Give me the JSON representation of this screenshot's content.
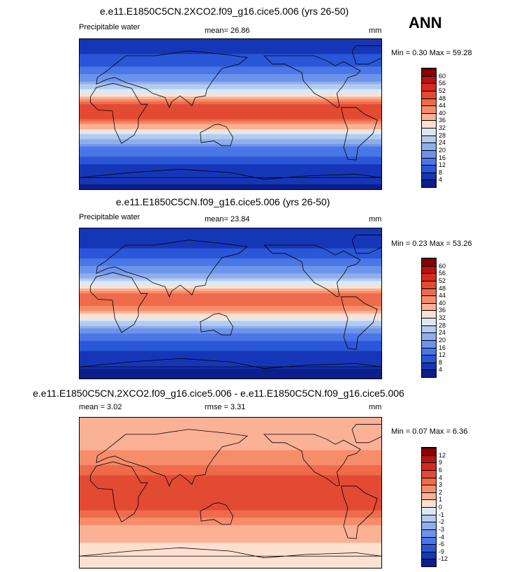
{
  "season": "ANN",
  "panels": [
    {
      "title": "e.e11.E1850C5CN.2XCO2.f09_g16.cice5.006 (yrs 26-50)",
      "left_label": "Precipitable water",
      "mid_label": "mean=  26.86",
      "units": "mm",
      "minmax": "Min =   0.30 Max =  59.28",
      "field": "precipitable_water_2xco2",
      "colorbar_labels": [
        "60",
        "56",
        "52",
        "48",
        "44",
        "40",
        "36",
        "32",
        "28",
        "24",
        "20",
        "16",
        "12",
        "8",
        "4"
      ],
      "colors": [
        "#8b0000",
        "#b5140f",
        "#d52b1e",
        "#e34a33",
        "#ee6b4b",
        "#f58d6b",
        "#fab195",
        "#fde0d0",
        "#dbe9f6",
        "#b3cbef",
        "#8faeed",
        "#6d93ea",
        "#4a76e6",
        "#2a56d8",
        "#1636b8",
        "#0c1f8a"
      ]
    },
    {
      "title": "e.e11.E1850C5CN.f09_g16.cice5.006 (yrs 26-50)",
      "left_label": "Precipitable water",
      "mid_label": "mean=  23.84",
      "units": "mm",
      "minmax": "Min =   0.23 Max =  53.26",
      "field": "precipitable_water_ctrl",
      "colorbar_labels": [
        "60",
        "56",
        "52",
        "48",
        "44",
        "40",
        "36",
        "32",
        "28",
        "24",
        "20",
        "16",
        "12",
        "8",
        "4"
      ],
      "colors": [
        "#8b0000",
        "#b5140f",
        "#d52b1e",
        "#e34a33",
        "#ee6b4b",
        "#f58d6b",
        "#fab195",
        "#fde0d0",
        "#dbe9f6",
        "#b3cbef",
        "#8faeed",
        "#6d93ea",
        "#4a76e6",
        "#2a56d8",
        "#1636b8",
        "#0c1f8a"
      ]
    },
    {
      "title": "e.e11.E1850C5CN.2XCO2.f09_g16.cice5.006 - e.e11.E1850C5CN.f09_g16.cice5.006",
      "left_label": "mean =   3.02",
      "mid_label": "rmse =   3.31",
      "units": "mm",
      "minmax": "Min =   0.07 Max =   6.36",
      "field": "precipitable_water_difference",
      "colorbar_labels": [
        "12",
        "9",
        "6",
        "4",
        "3",
        "2",
        "1",
        "0",
        "-1",
        "-2",
        "-3",
        "-4",
        "-6",
        "-9",
        "-12"
      ],
      "colors": [
        "#8b0000",
        "#b5140f",
        "#d52b1e",
        "#e34a33",
        "#ee6b4b",
        "#f58d6b",
        "#fab195",
        "#fde0d0",
        "#dbe9f6",
        "#b3cbef",
        "#8faeed",
        "#6d93ea",
        "#4a76e6",
        "#2a56d8",
        "#1636b8",
        "#0c1f8a"
      ]
    }
  ],
  "chart_data": [
    {
      "type": "heatmap",
      "title": "e.e11.E1850C5CN.2XCO2.f09_g16.cice5.006 (yrs 26-50)",
      "variable": "Precipitable water",
      "units": "mm",
      "mean": 26.86,
      "min": 0.3,
      "max": 59.28,
      "contour_levels": [
        4,
        8,
        12,
        16,
        20,
        24,
        28,
        32,
        36,
        40,
        44,
        48,
        52,
        56,
        60
      ],
      "zonal_mean_profile": {
        "lat": [
          -90,
          -60,
          -40,
          -20,
          -10,
          0,
          10,
          20,
          40,
          60,
          90
        ],
        "value": [
          3,
          8,
          16,
          32,
          44,
          52,
          50,
          36,
          20,
          10,
          5
        ]
      }
    },
    {
      "type": "heatmap",
      "title": "e.e11.E1850C5CN.f09_g16.cice5.006 (yrs 26-50)",
      "variable": "Precipitable water",
      "units": "mm",
      "mean": 23.84,
      "min": 0.23,
      "max": 53.26,
      "contour_levels": [
        4,
        8,
        12,
        16,
        20,
        24,
        28,
        32,
        36,
        40,
        44,
        48,
        52,
        56,
        60
      ],
      "zonal_mean_profile": {
        "lat": [
          -90,
          -60,
          -40,
          -20,
          -10,
          0,
          10,
          20,
          40,
          60,
          90
        ],
        "value": [
          2,
          7,
          14,
          28,
          40,
          46,
          45,
          32,
          18,
          9,
          4
        ]
      }
    },
    {
      "type": "heatmap",
      "title": "e.e11.E1850C5CN.2XCO2.f09_g16.cice5.006 - e.e11.E1850C5CN.f09_g16.cice5.006",
      "variable": "Precipitable water difference",
      "units": "mm",
      "mean": 3.02,
      "rmse": 3.31,
      "min": 0.07,
      "max": 6.36,
      "contour_levels": [
        -12,
        -9,
        -6,
        -4,
        -3,
        -2,
        -1,
        0,
        1,
        2,
        3,
        4,
        6,
        9,
        12
      ],
      "zonal_mean_profile": {
        "lat": [
          -90,
          -60,
          -40,
          -20,
          -10,
          0,
          10,
          20,
          40,
          60,
          90
        ],
        "value": [
          0.5,
          1,
          2,
          4,
          5,
          6,
          5.5,
          4,
          2.5,
          1.5,
          1
        ]
      }
    }
  ]
}
